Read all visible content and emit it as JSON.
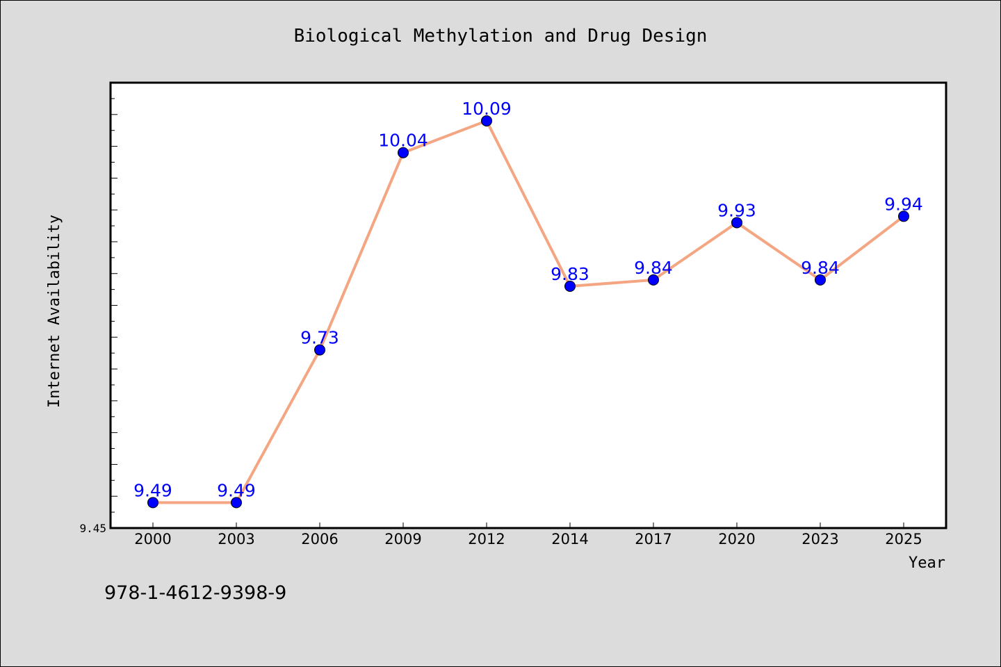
{
  "chart_data": {
    "type": "line",
    "title": "Biological Methylation and Drug Design",
    "xlabel": "Year",
    "ylabel": "Internet Availability",
    "categories": [
      "2000",
      "2003",
      "2006",
      "2009",
      "2012",
      "2014",
      "2017",
      "2020",
      "2023",
      "2025"
    ],
    "series": [
      {
        "values": [
          9.49,
          9.49,
          9.73,
          10.04,
          10.09,
          9.83,
          9.84,
          9.93,
          9.84,
          9.94
        ],
        "line_color": "#f4a582",
        "marker_color": "#0000ff",
        "label_color": "#0000ff"
      }
    ],
    "ylim": [
      9.45,
      10.15
    ],
    "y_tick_labels": [
      "9.45"
    ],
    "grid": false,
    "legend": "none"
  },
  "footer": {
    "code": "978-1-4612-9398-9"
  }
}
